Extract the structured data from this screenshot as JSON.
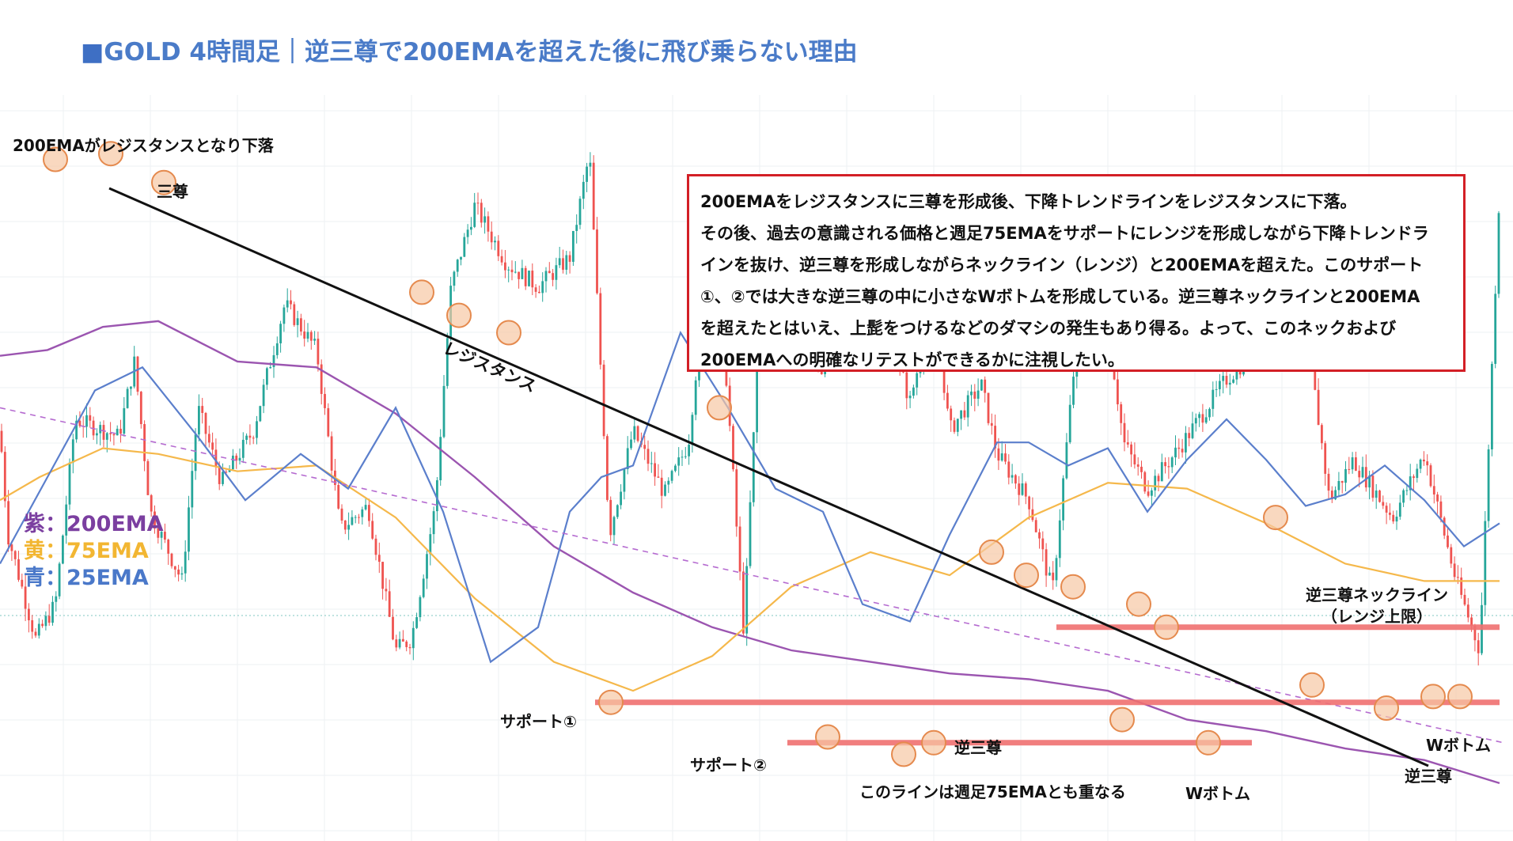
{
  "title": {
    "square": "■",
    "text": "GOLD 4時間足｜逆三尊で200EMAを超えた後に飛び乗らない理由"
  },
  "top_note": "200EMAがレジスタンスとなり下落",
  "textbox": {
    "lines": [
      "200EMAをレジスタンスに三尊を形成後、下降トレンドラインをレジスタンスに下落。",
      "その後、過去の意識される価格と週足75EMAをサポートにレンジを形成しながら下降トレンドラ",
      "インを抜け、逆三尊を形成しながらネックライン（レンジ）と200EMAを超えた。このサポート",
      "①、②では大きな逆三尊の中に小さなWボトムを形成している。逆三尊ネックラインと200EMA",
      "を超えたとはいえ、上髭をつけるなどのダマシの発生もあり得る。よって、このネックおよび",
      "200EMAへの明確なリテストができるかに注視したい。"
    ],
    "border_color": "#d31f26"
  },
  "legend": [
    {
      "label": "紫：200EMA",
      "color": "#7b3fa0"
    },
    {
      "label": "黄：75EMA",
      "color": "#f2b632"
    },
    {
      "label": "青：25EMA",
      "color": "#4a78c9"
    }
  ],
  "labels": {
    "santon": "三尊",
    "resistance": "レジスタンス",
    "support1": "サポート①",
    "support2": "サポート②",
    "gyaku_santon_1": "逆三尊",
    "weekly_note": "このラインは週足75EMAとも重なる",
    "w_bottom_1": "Wボトム",
    "w_bottom_2": "Wボトム",
    "gyaku_santon_2": "逆三尊",
    "neckline_1": "逆三尊ネックライン",
    "neckline_2": "（レンジ上限）"
  },
  "colors": {
    "bull": "#26a69a",
    "bear": "#ef5350",
    "ema200": "#9b55b0",
    "ema75": "#f5b84b",
    "ema25": "#5b7fcc",
    "trendline": "#111111",
    "channel": "#b56bd0",
    "hline": "#f07070",
    "circle_fill": "#f7c8a4",
    "circle_stroke": "#e58a4e",
    "grid": "#eef0f3",
    "price_line": "#7fc7c0"
  },
  "chart_data": {
    "type": "candlestick",
    "title": "GOLD 4時間足",
    "indicators": [
      "200EMA",
      "75EMA",
      "25EMA"
    ],
    "price_path": [
      [
        0,
        58
      ],
      [
        10,
        40
      ],
      [
        45,
        22
      ],
      [
        70,
        28
      ],
      [
        95,
        60
      ],
      [
        150,
        57
      ],
      [
        170,
        70
      ],
      [
        190,
        44
      ],
      [
        230,
        32
      ],
      [
        250,
        62
      ],
      [
        280,
        49
      ],
      [
        320,
        58
      ],
      [
        360,
        80
      ],
      [
        400,
        72
      ],
      [
        430,
        41
      ],
      [
        465,
        45
      ],
      [
        500,
        20
      ],
      [
        520,
        22
      ],
      [
        550,
        45
      ],
      [
        570,
        83
      ],
      [
        600,
        97
      ],
      [
        640,
        87
      ],
      [
        680,
        83
      ],
      [
        720,
        88
      ],
      [
        745,
        106
      ],
      [
        770,
        40
      ],
      [
        800,
        58
      ],
      [
        840,
        47
      ],
      [
        870,
        56
      ],
      [
        890,
        82
      ],
      [
        915,
        73
      ],
      [
        940,
        23
      ],
      [
        965,
        92
      ],
      [
        1000,
        87
      ],
      [
        1040,
        67
      ],
      [
        1070,
        90
      ],
      [
        1100,
        86
      ],
      [
        1150,
        63
      ],
      [
        1180,
        81
      ],
      [
        1200,
        58
      ],
      [
        1240,
        66
      ],
      [
        1260,
        54
      ],
      [
        1300,
        46
      ],
      [
        1330,
        30
      ],
      [
        1370,
        87
      ],
      [
        1400,
        76
      ],
      [
        1420,
        56
      ],
      [
        1450,
        48
      ],
      [
        1490,
        55
      ],
      [
        1550,
        67
      ],
      [
        1580,
        71
      ],
      [
        1610,
        90
      ],
      [
        1640,
        86
      ],
      [
        1680,
        46
      ],
      [
        1710,
        53
      ],
      [
        1760,
        43
      ],
      [
        1800,
        54
      ],
      [
        1840,
        32
      ],
      [
        1870,
        20
      ],
      [
        1895,
        100
      ]
    ],
    "ema200_path": [
      [
        0,
        71
      ],
      [
        60,
        72
      ],
      [
        130,
        76
      ],
      [
        200,
        77
      ],
      [
        300,
        70
      ],
      [
        400,
        69
      ],
      [
        500,
        61
      ],
      [
        600,
        50
      ],
      [
        700,
        38
      ],
      [
        800,
        30
      ],
      [
        900,
        24
      ],
      [
        1000,
        20
      ],
      [
        1100,
        18
      ],
      [
        1200,
        16
      ],
      [
        1300,
        15
      ],
      [
        1400,
        13
      ],
      [
        1500,
        8
      ],
      [
        1600,
        6
      ],
      [
        1700,
        3
      ],
      [
        1800,
        1
      ],
      [
        1895,
        -3
      ]
    ],
    "ema75_path": [
      [
        0,
        46
      ],
      [
        50,
        50
      ],
      [
        130,
        55
      ],
      [
        200,
        54
      ],
      [
        300,
        51
      ],
      [
        400,
        52
      ],
      [
        500,
        43
      ],
      [
        600,
        29
      ],
      [
        700,
        18
      ],
      [
        800,
        13
      ],
      [
        900,
        19
      ],
      [
        1000,
        31
      ],
      [
        1100,
        37
      ],
      [
        1200,
        33
      ],
      [
        1300,
        43
      ],
      [
        1400,
        49
      ],
      [
        1500,
        48
      ],
      [
        1600,
        42
      ],
      [
        1700,
        35
      ],
      [
        1800,
        32
      ],
      [
        1895,
        32
      ]
    ],
    "ema25_path": [
      [
        0,
        35
      ],
      [
        60,
        50
      ],
      [
        120,
        65
      ],
      [
        180,
        69
      ],
      [
        250,
        57
      ],
      [
        310,
        46
      ],
      [
        380,
        54
      ],
      [
        440,
        48
      ],
      [
        500,
        62
      ],
      [
        560,
        44
      ],
      [
        620,
        18
      ],
      [
        680,
        24
      ],
      [
        720,
        44
      ],
      [
        760,
        50
      ],
      [
        800,
        52
      ],
      [
        860,
        75
      ],
      [
        920,
        62
      ],
      [
        980,
        48
      ],
      [
        1040,
        44
      ],
      [
        1090,
        28
      ],
      [
        1150,
        25
      ],
      [
        1200,
        40
      ],
      [
        1260,
        56
      ],
      [
        1300,
        56
      ],
      [
        1350,
        52
      ],
      [
        1400,
        55
      ],
      [
        1450,
        44
      ],
      [
        1500,
        53
      ],
      [
        1550,
        60
      ],
      [
        1600,
        53
      ],
      [
        1650,
        45
      ],
      [
        1700,
        47
      ],
      [
        1750,
        52
      ],
      [
        1800,
        46
      ],
      [
        1850,
        38
      ],
      [
        1895,
        42
      ]
    ],
    "trendline": {
      "from": [
        138,
        100
      ],
      "to": [
        1805,
        0
      ]
    },
    "channel_line": {
      "from": [
        0,
        62
      ],
      "to": [
        1900,
        4
      ]
    },
    "horizontal_levels": [
      {
        "name": "ネックライン（レンジ上限）",
        "y": 24,
        "x_range": [
          1335,
          1895
        ]
      },
      {
        "name": "サポート①",
        "y": 11,
        "x_range": [
          752,
          1895
        ]
      },
      {
        "name": "サポート②",
        "y": 4,
        "x_range": [
          995,
          1582
        ]
      }
    ],
    "markers": [
      [
        70,
        105
      ],
      [
        140,
        106
      ],
      [
        207,
        101
      ],
      [
        533,
        82
      ],
      [
        580,
        78
      ],
      [
        643,
        75
      ],
      [
        909,
        62
      ],
      [
        1253,
        37
      ],
      [
        1297,
        33
      ],
      [
        1356,
        31
      ],
      [
        1439,
        28
      ],
      [
        1474,
        24
      ],
      [
        772,
        11
      ],
      [
        1046,
        5
      ],
      [
        1142,
        2
      ],
      [
        1180,
        4
      ],
      [
        1418,
        8
      ],
      [
        1527,
        4
      ],
      [
        1612,
        43
      ],
      [
        1658,
        14
      ],
      [
        1752,
        10
      ],
      [
        1811,
        12
      ],
      [
        1845,
        12
      ]
    ],
    "yrange": [
      0,
      110
    ],
    "xrange": [
      0,
      1912
    ],
    "grid": true
  }
}
